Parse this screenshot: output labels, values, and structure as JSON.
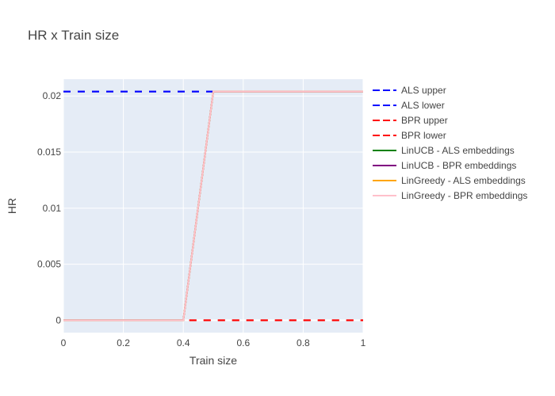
{
  "chart_data": {
    "type": "line",
    "title": "HR x Train size",
    "xlabel": "Train size",
    "ylabel": "HR",
    "xlim": [
      0,
      1
    ],
    "ylim": [
      -0.0011,
      0.0215
    ],
    "x_ticks": [
      {
        "value": 0,
        "label": "0"
      },
      {
        "value": 0.2,
        "label": "0.2"
      },
      {
        "value": 0.4,
        "label": "0.4"
      },
      {
        "value": 0.6,
        "label": "0.6"
      },
      {
        "value": 0.8,
        "label": "0.8"
      },
      {
        "value": 1,
        "label": "1"
      }
    ],
    "y_ticks": [
      {
        "value": 0,
        "label": "0"
      },
      {
        "value": 0.005,
        "label": "0.005"
      },
      {
        "value": 0.01,
        "label": "0.01"
      },
      {
        "value": 0.015,
        "label": "0.015"
      },
      {
        "value": 0.02,
        "label": "0.02"
      }
    ],
    "grid": true,
    "legend_position": "right",
    "series": [
      {
        "name": "ALS upper",
        "color": "#0000ff",
        "dash": "dash",
        "x": [
          0,
          0.5
        ],
        "y": [
          0.0204,
          0.0204
        ]
      },
      {
        "name": "ALS lower",
        "color": "#0000ff",
        "dash": "dash",
        "x": [
          0,
          0.5
        ],
        "y": [
          0.0204,
          0.0204
        ]
      },
      {
        "name": "BPR upper",
        "color": "#ff0000",
        "dash": "dash",
        "x": [
          0.42,
          1
        ],
        "y": [
          0,
          0
        ]
      },
      {
        "name": "BPR lower",
        "color": "#ff0000",
        "dash": "dash",
        "x": [
          0.42,
          1
        ],
        "y": [
          0,
          0
        ]
      },
      {
        "name": "LinUCB - ALS embeddings",
        "color": "#008000",
        "dash": "solid",
        "x": [
          0,
          0.4,
          0.5,
          1
        ],
        "y": [
          0,
          0,
          0.0204,
          0.0204
        ]
      },
      {
        "name": "LinUCB - BPR embeddings",
        "color": "#800080",
        "dash": "solid",
        "x": [
          0,
          0.4,
          0.5,
          1
        ],
        "y": [
          0,
          0,
          0.0204,
          0.0204
        ]
      },
      {
        "name": "LinGreedy - ALS embeddings",
        "color": "#ffa500",
        "dash": "solid",
        "x": [
          0,
          0.4,
          0.5,
          1
        ],
        "y": [
          0,
          0,
          0.0204,
          0.0204
        ]
      },
      {
        "name": "LinGreedy - BPR embeddings",
        "color": "#ffc0cb",
        "dash": "solid",
        "x": [
          0,
          0.4,
          0.5,
          1
        ],
        "y": [
          0,
          0,
          0.0204,
          0.0204
        ]
      }
    ],
    "colors": {
      "plot_background": "#e5ecf6",
      "grid": "#ffffff",
      "text": "#444444"
    }
  }
}
